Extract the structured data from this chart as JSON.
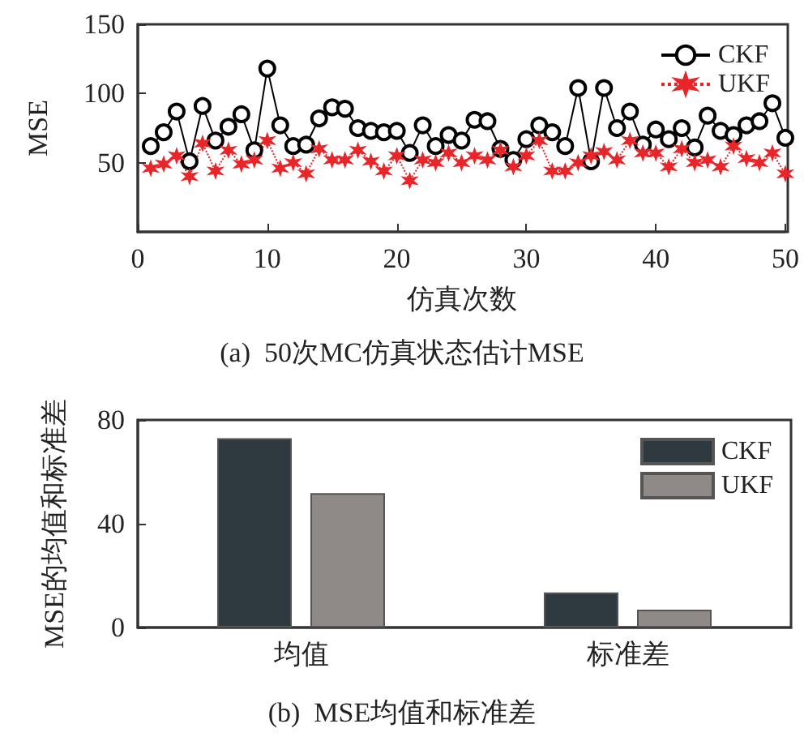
{
  "chart_data": [
    {
      "type": "line",
      "title": "(a)  50次MC仿真状态估计MSE",
      "xlabel": "仿真次数",
      "ylabel": "MSE",
      "x": [
        1,
        2,
        3,
        4,
        5,
        6,
        7,
        8,
        9,
        10,
        11,
        12,
        13,
        14,
        15,
        16,
        17,
        18,
        19,
        20,
        21,
        22,
        23,
        24,
        25,
        26,
        27,
        28,
        29,
        30,
        31,
        32,
        33,
        34,
        35,
        36,
        37,
        38,
        39,
        40,
        41,
        42,
        43,
        44,
        45,
        46,
        47,
        48,
        49,
        50
      ],
      "series": [
        {
          "name": "CKF",
          "color": "#000000",
          "marker": "circle",
          "line_style": "solid",
          "values": [
            62,
            72,
            87,
            51,
            91,
            66,
            76,
            85,
            59,
            118,
            77,
            62,
            63,
            82,
            90,
            89,
            75,
            73,
            72,
            73,
            57,
            77,
            62,
            70,
            66,
            81,
            80,
            60,
            52,
            67,
            77,
            72,
            62,
            104,
            51,
            104,
            75,
            87,
            63,
            74,
            67,
            75,
            61,
            84,
            73,
            70,
            77,
            80,
            93,
            68
          ]
        },
        {
          "name": "UKF",
          "color": "#e8262a",
          "marker": "cross",
          "line_style": "dotted",
          "values": [
            46,
            49,
            55,
            40,
            64,
            44,
            59,
            49,
            52,
            66,
            46,
            50,
            42,
            60,
            52,
            52,
            59,
            51,
            44,
            55,
            37,
            52,
            50,
            57,
            50,
            55,
            52,
            59,
            47,
            55,
            66,
            44,
            44,
            50,
            55,
            58,
            52,
            66,
            57,
            57,
            47,
            60,
            50,
            52,
            47,
            62,
            53,
            50,
            57,
            42
          ]
        }
      ],
      "xlim": [
        0,
        50
      ],
      "xticks": [
        0,
        10,
        20,
        30,
        40,
        50
      ],
      "ylim": [
        0,
        150
      ],
      "yticks": [
        50,
        100,
        150
      ],
      "grid": false,
      "legend": "top right"
    },
    {
      "type": "bar",
      "title": "(b)  MSE均值和标准差",
      "ylabel": "MSE的均值和标准差",
      "categories": [
        "均值",
        "标准差"
      ],
      "series": [
        {
          "name": "CKF",
          "color": "#2e3a40",
          "values": [
            73,
            13.5
          ]
        },
        {
          "name": "UKF",
          "color": "#8f8a87",
          "values": [
            51.8,
            6.9
          ]
        }
      ],
      "ylim": [
        0,
        80
      ],
      "yticks": [
        0,
        40,
        80
      ],
      "grid": false,
      "legend": "top right"
    }
  ]
}
